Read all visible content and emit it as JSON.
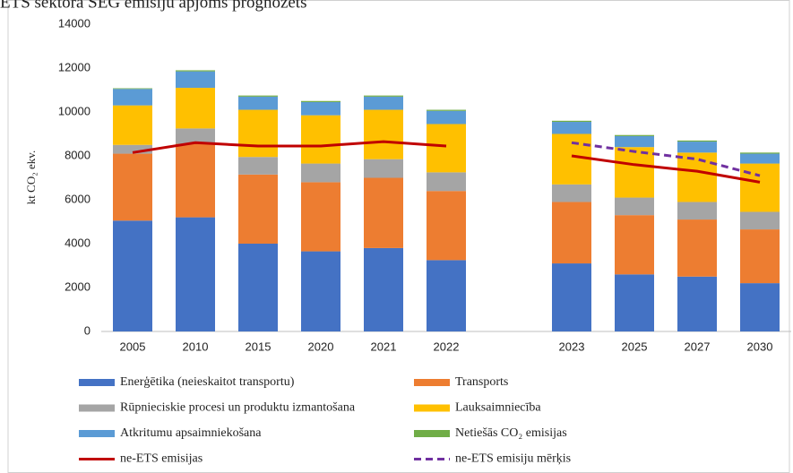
{
  "chart_data": {
    "type": "bar",
    "stacked": true,
    "title": "ETS sektorā SEG emisiju apjoms prognozēts",
    "y_label": "kt CO₂ ekv.",
    "categories": [
      "2005",
      "2010",
      "2015",
      "2020",
      "2021",
      "2022",
      null,
      "2023",
      "2025",
      "2027",
      "2030"
    ],
    "ylim": [
      0,
      14000
    ],
    "yticks": [
      0,
      2000,
      4000,
      6000,
      8000,
      10000,
      12000,
      14000
    ],
    "grid": false,
    "series": [
      {
        "name": "Enerģētika (neieskaitot transportu)",
        "color": "#4472c4",
        "values": [
          5050,
          5200,
          4000,
          3650,
          3800,
          3250,
          null,
          3100,
          2600,
          2500,
          2200
        ]
      },
      {
        "name": "Transports",
        "color": "#ed7d31",
        "values": [
          3050,
          3350,
          3150,
          3150,
          3200,
          3150,
          null,
          2800,
          2700,
          2600,
          2450
        ]
      },
      {
        "name": "Rūpnieciskie procesi un produktu izmantošana",
        "color": "#a5a5a5",
        "values": [
          400,
          700,
          800,
          850,
          850,
          850,
          null,
          800,
          800,
          800,
          800
        ]
      },
      {
        "name": "Lauksaimniecība",
        "color": "#ffc000",
        "values": [
          1800,
          1850,
          2150,
          2200,
          2250,
          2200,
          null,
          2300,
          2300,
          2250,
          2200
        ]
      },
      {
        "name": "Atkritumu apsaimniekošana",
        "color": "#5b9bd5",
        "values": [
          750,
          750,
          600,
          600,
          600,
          600,
          null,
          550,
          500,
          500,
          450
        ]
      },
      {
        "name": "Netiešās CO₂ emisijas",
        "color": "#70ad47",
        "values": [
          30,
          50,
          50,
          50,
          50,
          50,
          null,
          50,
          50,
          50,
          50
        ]
      },
      {
        "name": "ne-ETS emisijas",
        "type": "line",
        "color": "#c00000",
        "values": [
          8150,
          8600,
          8450,
          8450,
          8650,
          8450,
          null,
          8000,
          7600,
          7300,
          6800
        ]
      },
      {
        "name": "ne-ETS emisiju mērķis",
        "type": "line",
        "dashed": true,
        "color": "#7030a0",
        "values": [
          null,
          null,
          null,
          null,
          null,
          null,
          null,
          8600,
          8200,
          7850,
          7100
        ]
      }
    ]
  }
}
